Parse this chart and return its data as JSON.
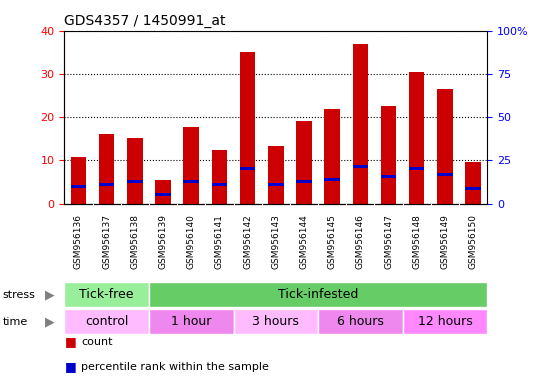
{
  "title": "GDS4357 / 1450991_at",
  "samples": [
    "GSM956136",
    "GSM956137",
    "GSM956138",
    "GSM956139",
    "GSM956140",
    "GSM956141",
    "GSM956142",
    "GSM956143",
    "GSM956144",
    "GSM956145",
    "GSM956146",
    "GSM956147",
    "GSM956148",
    "GSM956149",
    "GSM956150"
  ],
  "counts": [
    10.8,
    16.2,
    15.2,
    5.5,
    17.8,
    12.5,
    35.0,
    13.3,
    19.0,
    21.8,
    37.0,
    22.5,
    30.5,
    26.5,
    9.5
  ],
  "percentile_vals": [
    4.0,
    4.5,
    5.2,
    2.2,
    5.2,
    4.5,
    8.0,
    4.5,
    5.2,
    5.5,
    8.5,
    6.2,
    8.0,
    6.8,
    3.5
  ],
  "bar_color": "#cc0000",
  "percentile_color": "#0000cc",
  "ylim_left": [
    0,
    40
  ],
  "ylim_right": [
    0,
    100
  ],
  "yticks_left": [
    0,
    10,
    20,
    30,
    40
  ],
  "yticks_right": [
    0,
    25,
    50,
    75,
    100
  ],
  "yticklabels_right": [
    "0",
    "25",
    "50",
    "75",
    "100%"
  ],
  "stress_groups": [
    {
      "label": "Tick-free",
      "start": 0,
      "end": 3,
      "color": "#99ee99"
    },
    {
      "label": "Tick-infested",
      "start": 3,
      "end": 15,
      "color": "#66cc66"
    }
  ],
  "time_groups": [
    {
      "label": "control",
      "start": 0,
      "end": 3,
      "color": "#ffbbff"
    },
    {
      "label": "1 hour",
      "start": 3,
      "end": 6,
      "color": "#ee88ee"
    },
    {
      "label": "3 hours",
      "start": 6,
      "end": 9,
      "color": "#ffbbff"
    },
    {
      "label": "6 hours",
      "start": 9,
      "end": 12,
      "color": "#ee88ee"
    },
    {
      "label": "12 hours",
      "start": 12,
      "end": 15,
      "color": "#ff88ff"
    }
  ],
  "background_color": "#ffffff",
  "plot_bg_color": "#ffffff",
  "xticklabel_bg": "#d8d8d8",
  "legend_items": [
    {
      "label": "count",
      "color": "#cc0000"
    },
    {
      "label": "percentile rank within the sample",
      "color": "#0000cc"
    }
  ]
}
